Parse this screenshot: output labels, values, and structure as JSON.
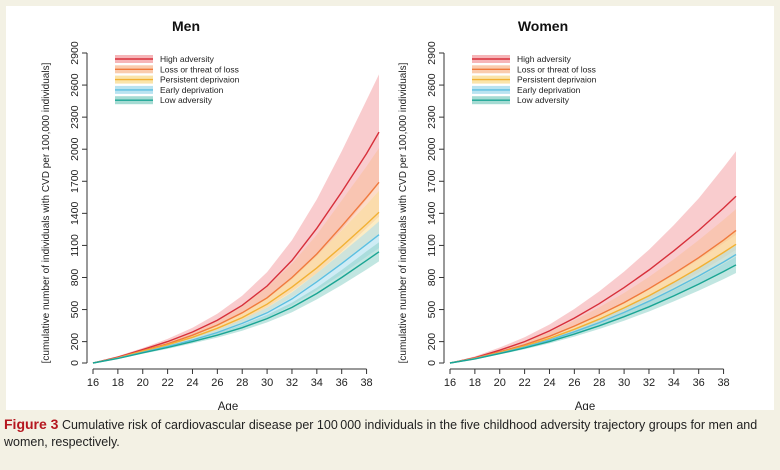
{
  "chart_data": [
    {
      "type": "line",
      "title": "Men",
      "xlabel": "Age",
      "ylabel": "[cumulative number of individuals with CVD per 100,000 individuals]",
      "xlim": [
        16,
        39
      ],
      "ylim": [
        0,
        2900
      ],
      "x_ticks": [
        16,
        18,
        20,
        22,
        24,
        26,
        28,
        30,
        32,
        34,
        36,
        38
      ],
      "y_ticks": [
        0,
        200,
        500,
        800,
        1100,
        1400,
        1700,
        2000,
        2300,
        2600,
        2900
      ],
      "legend_position": "top-left",
      "x": [
        16,
        18,
        20,
        22,
        24,
        26,
        28,
        30,
        32,
        34,
        36,
        38,
        39
      ],
      "series": [
        {
          "name": "High adversity",
          "color": "#d7303b",
          "band_color": "#f4a3a6",
          "values": [
            0,
            55,
            125,
            200,
            290,
            400,
            540,
            720,
            960,
            1260,
            1600,
            1960,
            2160
          ],
          "lower": [
            0,
            45,
            110,
            175,
            250,
            345,
            460,
            600,
            780,
            1000,
            1250,
            1530,
            1680
          ],
          "upper": [
            0,
            65,
            140,
            225,
            330,
            460,
            630,
            850,
            1150,
            1530,
            1980,
            2460,
            2700
          ]
        },
        {
          "name": "Loss or threat of loss",
          "color": "#f07a3d",
          "band_color": "#f9bf9a",
          "values": [
            0,
            50,
            115,
            180,
            260,
            355,
            470,
            610,
            800,
            1020,
            1280,
            1550,
            1690
          ],
          "lower": [
            0,
            42,
            100,
            160,
            230,
            310,
            400,
            520,
            670,
            840,
            1040,
            1260,
            1370
          ],
          "upper": [
            0,
            58,
            130,
            200,
            290,
            400,
            540,
            710,
            930,
            1200,
            1520,
            1840,
            2010
          ]
        },
        {
          "name": "Persistent deprivaion",
          "color": "#f2b134",
          "band_color": "#f9dd95",
          "values": [
            0,
            48,
            110,
            170,
            240,
            325,
            425,
            550,
            710,
            890,
            1090,
            1300,
            1410
          ],
          "lower": [
            0,
            42,
            98,
            152,
            215,
            290,
            375,
            480,
            615,
            770,
            940,
            1120,
            1210
          ],
          "upper": [
            0,
            54,
            122,
            188,
            265,
            360,
            475,
            620,
            800,
            1010,
            1240,
            1480,
            1610
          ]
        },
        {
          "name": "Early deprivation",
          "color": "#5cbfe0",
          "band_color": "#a8dcec",
          "values": [
            0,
            45,
            100,
            155,
            215,
            285,
            370,
            470,
            600,
            760,
            930,
            1110,
            1200
          ],
          "lower": [
            0,
            40,
            90,
            140,
            195,
            258,
            333,
            422,
            540,
            680,
            830,
            995,
            1075
          ],
          "upper": [
            0,
            50,
            110,
            170,
            235,
            312,
            407,
            518,
            660,
            840,
            1030,
            1225,
            1325
          ]
        },
        {
          "name": "Low adversity",
          "color": "#1aa594",
          "band_color": "#8ed2c8",
          "values": [
            0,
            42,
            95,
            145,
            200,
            260,
            330,
            415,
            520,
            650,
            800,
            960,
            1040
          ],
          "lower": [
            0,
            38,
            86,
            132,
            183,
            238,
            302,
            380,
            475,
            595,
            730,
            875,
            950
          ],
          "upper": [
            0,
            46,
            104,
            158,
            217,
            282,
            358,
            450,
            565,
            705,
            870,
            1045,
            1130
          ]
        }
      ]
    },
    {
      "type": "line",
      "title": "Women",
      "xlabel": "Age",
      "ylabel": "[cumulative number of individuals with CVD per 100,000 individuals]",
      "xlim": [
        16,
        39
      ],
      "ylim": [
        0,
        2900
      ],
      "x_ticks": [
        16,
        18,
        20,
        22,
        24,
        26,
        28,
        30,
        32,
        34,
        36,
        38
      ],
      "y_ticks": [
        0,
        200,
        500,
        800,
        1100,
        1400,
        1700,
        2000,
        2300,
        2600,
        2900
      ],
      "legend_position": "top-left",
      "x": [
        16,
        18,
        20,
        22,
        24,
        26,
        28,
        30,
        32,
        34,
        36,
        38,
        39
      ],
      "series": [
        {
          "name": "High adversity",
          "color": "#d7303b",
          "band_color": "#f4a3a6",
          "values": [
            0,
            50,
            120,
            200,
            300,
            420,
            555,
            705,
            870,
            1050,
            1240,
            1450,
            1560
          ],
          "lower": [
            0,
            40,
            100,
            165,
            245,
            340,
            445,
            560,
            685,
            820,
            965,
            1120,
            1200
          ],
          "upper": [
            0,
            62,
            145,
            240,
            360,
            505,
            670,
            855,
            1060,
            1290,
            1540,
            1830,
            1980
          ]
        },
        {
          "name": "Loss or threat of loss",
          "color": "#f07a3d",
          "band_color": "#f9bf9a",
          "values": [
            0,
            45,
            105,
            170,
            250,
            345,
            450,
            565,
            695,
            835,
            985,
            1150,
            1240
          ],
          "lower": [
            0,
            38,
            90,
            145,
            215,
            295,
            385,
            485,
            595,
            715,
            845,
            985,
            1060
          ],
          "upper": [
            0,
            53,
            122,
            198,
            290,
            400,
            520,
            655,
            805,
            970,
            1150,
            1340,
            1440
          ]
        },
        {
          "name": "Persistent deprivaion",
          "color": "#f2b134",
          "band_color": "#f9dd95",
          "values": [
            0,
            42,
            98,
            158,
            230,
            315,
            410,
            515,
            630,
            755,
            890,
            1035,
            1110
          ],
          "lower": [
            0,
            37,
            88,
            142,
            207,
            283,
            368,
            462,
            565,
            677,
            798,
            928,
            995
          ],
          "upper": [
            0,
            48,
            110,
            176,
            256,
            350,
            456,
            572,
            700,
            838,
            988,
            1148,
            1230
          ]
        },
        {
          "name": "Early deprivation",
          "color": "#5cbfe0",
          "band_color": "#a8dcec",
          "values": [
            0,
            40,
            92,
            148,
            214,
            292,
            378,
            473,
            578,
            692,
            814,
            945,
            1015
          ],
          "lower": [
            0,
            36,
            84,
            135,
            195,
            266,
            345,
            432,
            528,
            632,
            744,
            864,
            928
          ],
          "upper": [
            0,
            45,
            101,
            162,
            234,
            319,
            412,
            514,
            628,
            752,
            884,
            1026,
            1102
          ]
        },
        {
          "name": "Low adversity",
          "color": "#1aa594",
          "band_color": "#8ed2c8",
          "values": [
            0,
            38,
            88,
            140,
            200,
            270,
            348,
            433,
            526,
            628,
            738,
            856,
            918
          ],
          "lower": [
            0,
            34,
            80,
            128,
            183,
            247,
            318,
            396,
            482,
            576,
            677,
            785,
            842
          ],
          "upper": [
            0,
            42,
            96,
            153,
            218,
            294,
            379,
            471,
            571,
            681,
            800,
            928,
            995
          ]
        }
      ]
    }
  ],
  "caption": {
    "label": "Figure 3",
    "text": " Cumulative risk of cardiovascular disease per 100 000 individuals in the five childhood adversity trajectory groups for men and women, respectively."
  }
}
